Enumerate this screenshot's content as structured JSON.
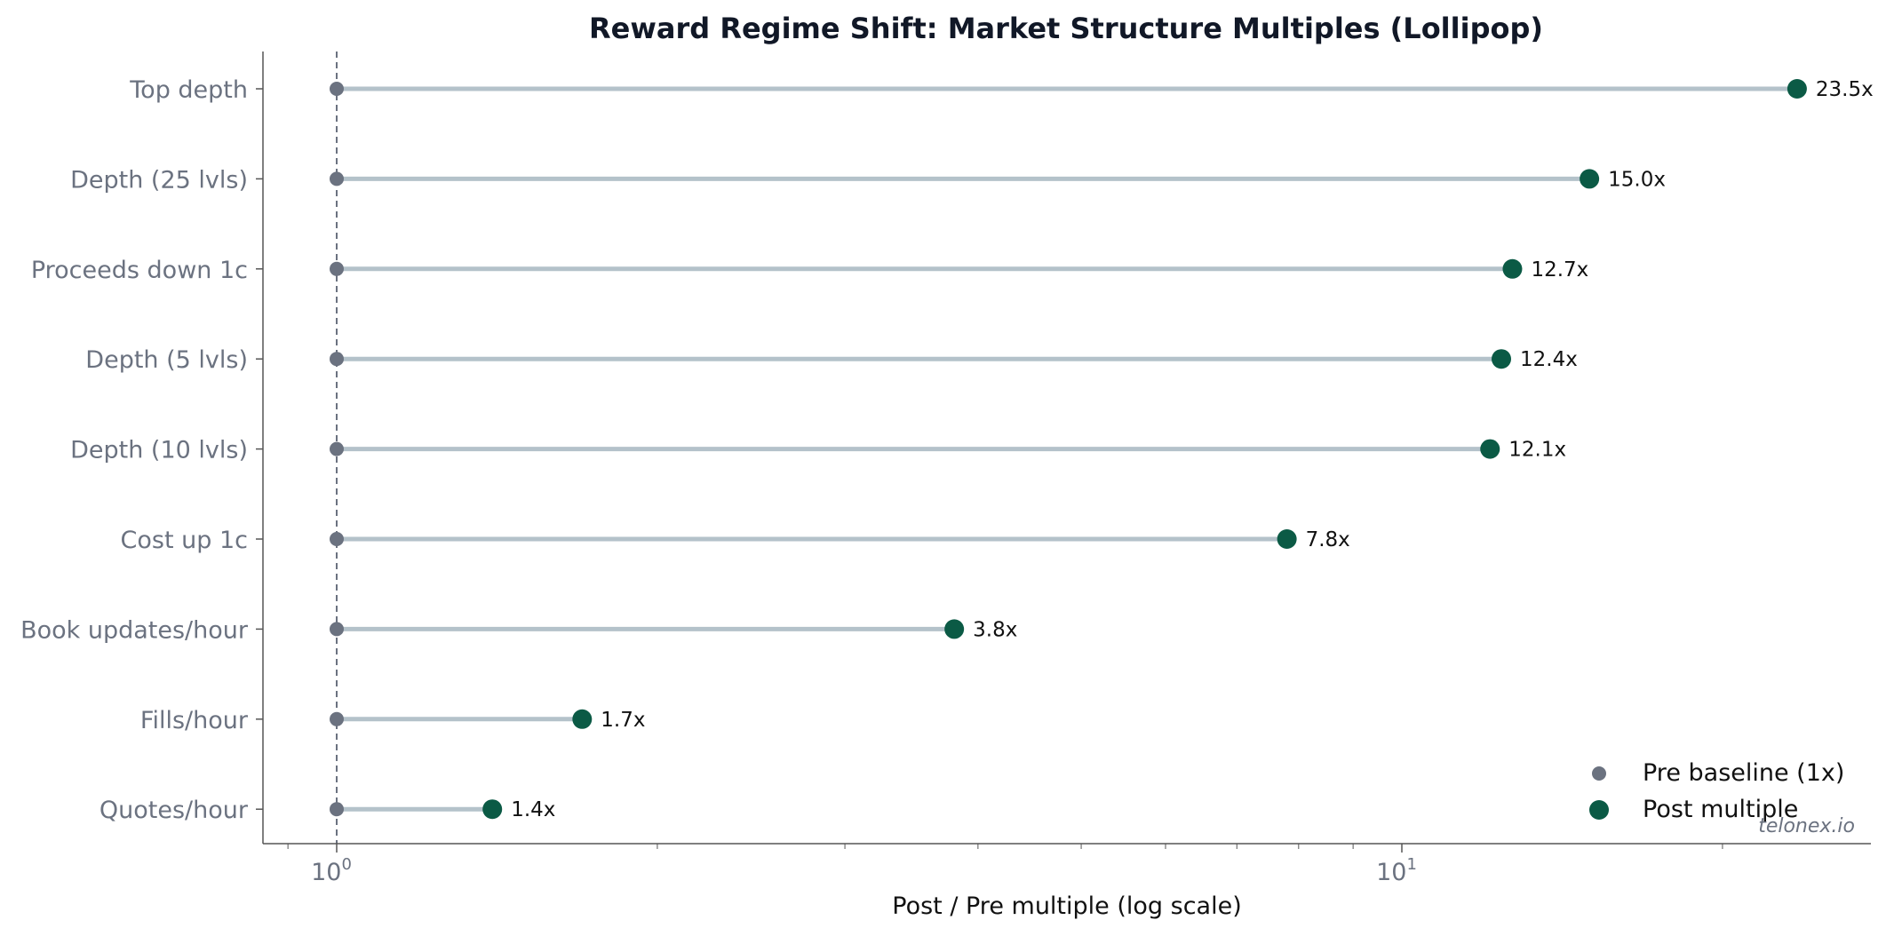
{
  "chart_data": {
    "type": "lollipop",
    "title": "Reward Regime Shift: Market Structure Multiples (Lollipop)",
    "xlabel": "Post / Pre multiple (log scale)",
    "ylabel": "",
    "xscale": "log",
    "xlim": [
      0.85,
      27
    ],
    "xticks": [
      {
        "value": 1,
        "base": "10",
        "exp": "0"
      },
      {
        "value": 10,
        "base": "10",
        "exp": "1"
      }
    ],
    "baseline": 1,
    "categories": [
      "Top depth",
      "Depth (25 lvls)",
      "Proceeds down 1c",
      "Depth (5 lvls)",
      "Depth (10 lvls)",
      "Cost up 1c",
      "Book updates/hour",
      "Fills/hour",
      "Quotes/hour"
    ],
    "series": [
      {
        "name": "Pre baseline (1x)",
        "values": [
          1,
          1,
          1,
          1,
          1,
          1,
          1,
          1,
          1
        ],
        "color": "#6b7280"
      },
      {
        "name": "Post multiple",
        "values": [
          23.5,
          15.0,
          12.7,
          12.4,
          12.1,
          7.8,
          3.8,
          1.7,
          1.4
        ],
        "color": "#0b5a45"
      }
    ],
    "value_labels": [
      "23.5x",
      "15.0x",
      "12.7x",
      "12.4x",
      "12.1x",
      "7.8x",
      "3.8x",
      "1.7x",
      "1.4x"
    ],
    "stem_color": "#b4c2ca",
    "grid": false,
    "legend_position": "bottom-right",
    "watermark": "telonex.io"
  }
}
